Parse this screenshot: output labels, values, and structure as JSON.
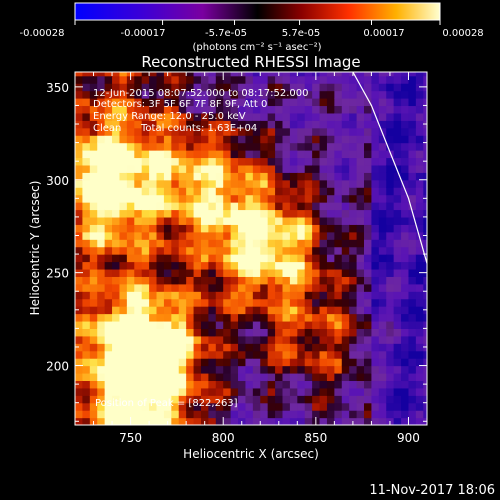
{
  "chart_data": {
    "type": "heatmap",
    "title": "Reconstructed RHESSI Image",
    "xlabel": "Heliocentric X (arcsec)",
    "ylabel": "Heliocentric Y (arcsec)",
    "xlim": [
      720,
      910
    ],
    "ylim": [
      168,
      358
    ],
    "x_ticks": [
      750,
      800,
      850,
      900
    ],
    "y_ticks": [
      200,
      250,
      300,
      350
    ],
    "colorbar": {
      "range": [
        -0.00028,
        0.00028
      ],
      "ticks": [
        "-0.00028",
        "-0.00017",
        "-5.7e-05",
        "5.7e-05",
        "0.00017",
        "0.00028"
      ],
      "units": "(photons cm⁻² s⁻¹ asec⁻²)"
    },
    "annotations": {
      "time_range": "12-Jun-2015 08:07:52.000 to 08:17:52.000",
      "detectors": "Detectors: 3F 5F 6F 7F 8F 9F, Att 0",
      "energy": "Energy Range: 12.0 - 25.0 keV",
      "clean_label": "Clean",
      "total_counts": "Total counts: 1.63E+04",
      "peak": "Position of Peak = [822,263]"
    },
    "peak": [
      822,
      263
    ],
    "limb_points": [
      [
        870,
        358
      ],
      [
        880,
        340
      ],
      [
        890,
        315
      ],
      [
        900,
        290
      ],
      [
        910,
        255
      ]
    ],
    "bright_sources": [
      {
        "x": 822,
        "y": 265,
        "intensity": 1.0
      },
      {
        "x": 760,
        "y": 210,
        "intensity": 0.95
      },
      {
        "x": 735,
        "y": 300,
        "intensity": 0.75
      },
      {
        "x": 790,
        "y": 300,
        "intensity": 0.7
      },
      {
        "x": 850,
        "y": 215,
        "intensity": 0.5
      },
      {
        "x": 760,
        "y": 175,
        "intensity": 0.55
      }
    ],
    "footer_date": "11-Nov-2017 18:06"
  }
}
